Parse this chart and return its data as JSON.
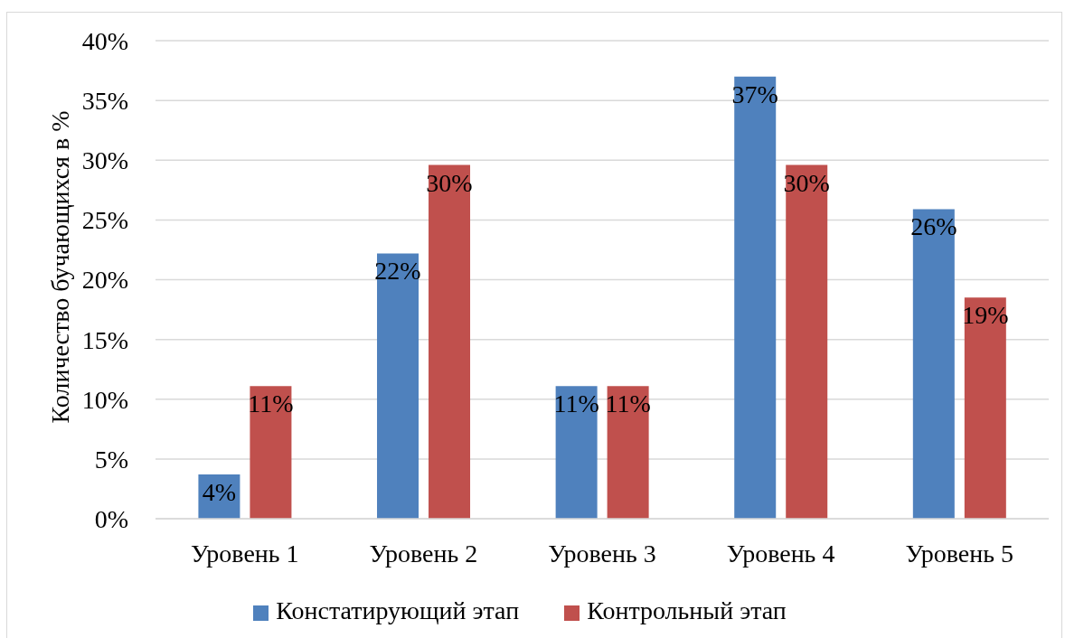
{
  "chart_data": {
    "type": "bar",
    "ylabel": "Количество бучающихся в %",
    "categories": [
      "Уровень 1",
      "Уровень 2",
      "Уровень 3",
      "Уровень 4",
      "Уровень 5"
    ],
    "series": [
      {
        "name": "Констатирующий этап",
        "color": "#4f81bd",
        "values": [
          3.7,
          22.2,
          11.1,
          37.0,
          25.9
        ],
        "value_labels": [
          "4%",
          "22%",
          "11%",
          "37%",
          "26%"
        ]
      },
      {
        "name": "Контрольный этап",
        "color": "#c0504d",
        "values": [
          11.1,
          29.6,
          11.1,
          29.6,
          18.5
        ],
        "value_labels": [
          "11%",
          "30%",
          "11%",
          "30%",
          "19%"
        ]
      }
    ],
    "ylim": [
      0,
      40
    ],
    "yticks": [
      {
        "value": 0,
        "label": "0%"
      },
      {
        "value": 5,
        "label": "5%"
      },
      {
        "value": 10,
        "label": "10%"
      },
      {
        "value": 15,
        "label": "15%"
      },
      {
        "value": 20,
        "label": "20%"
      },
      {
        "value": 25,
        "label": "25%"
      },
      {
        "value": 30,
        "label": "30%"
      },
      {
        "value": 35,
        "label": "35%"
      },
      {
        "value": 40,
        "label": "40%"
      }
    ],
    "grid": "y",
    "legend": "bottom"
  }
}
